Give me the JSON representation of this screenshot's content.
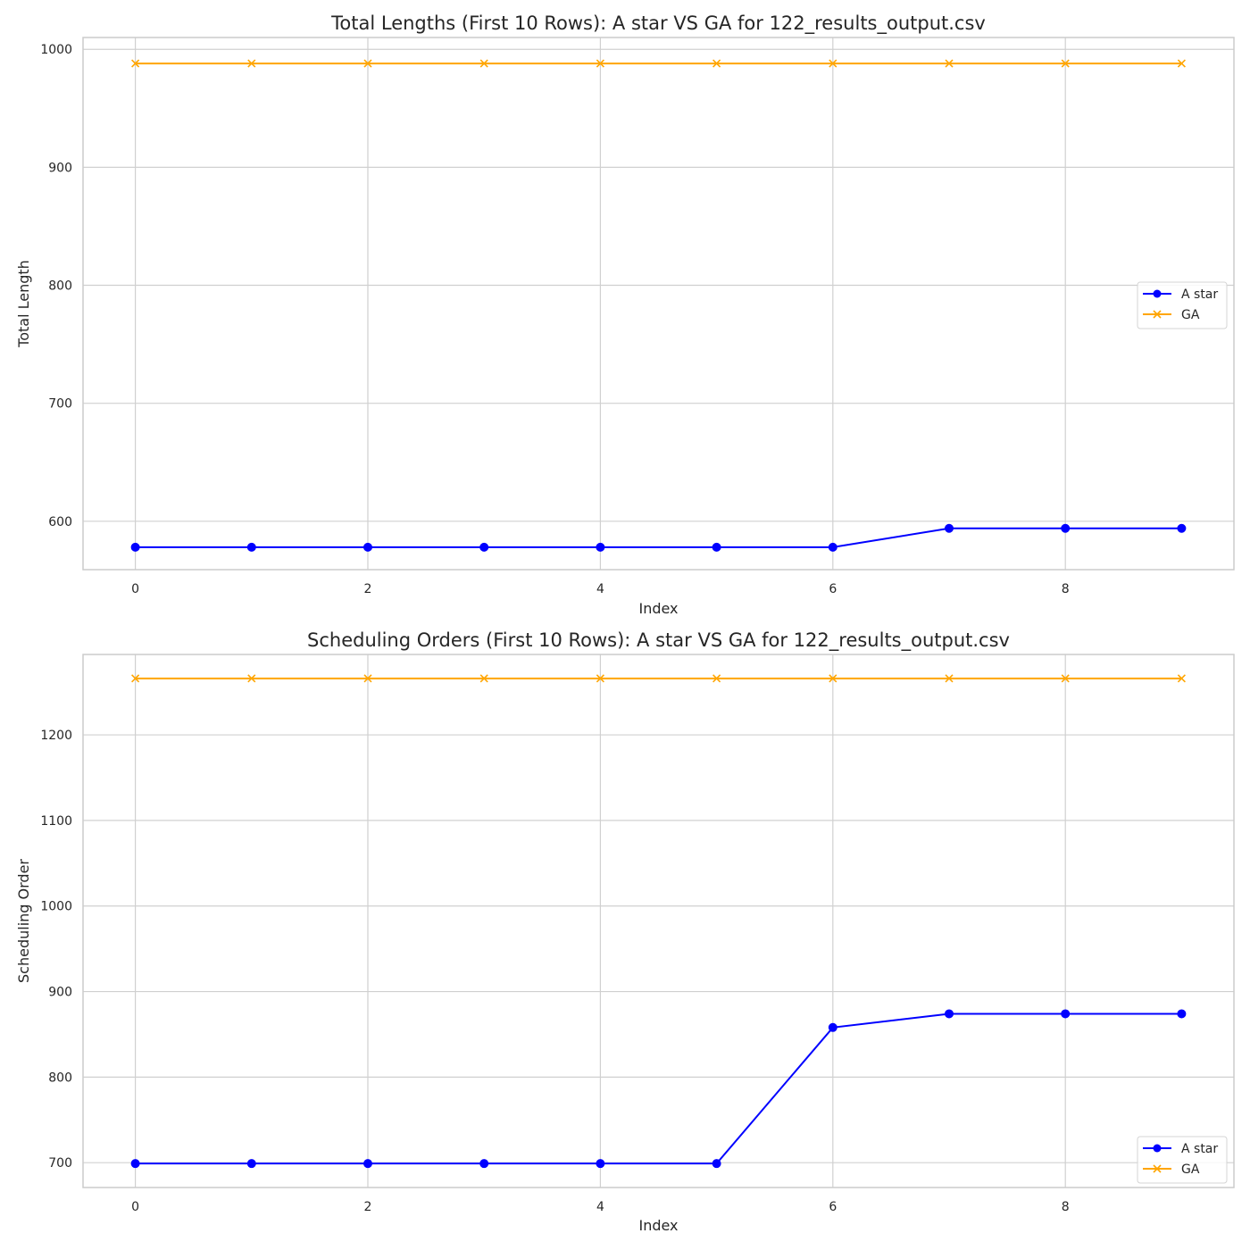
{
  "chart_data": [
    {
      "type": "line",
      "title": "Total Lengths (First 10 Rows): A star VS GA for 122_results_output.csv",
      "xlabel": "Index",
      "ylabel": "Total Length",
      "x": [
        0,
        1,
        2,
        3,
        4,
        5,
        6,
        7,
        8,
        9
      ],
      "xlim": [
        -0.45,
        9.45
      ],
      "ylim": [
        559,
        1010
      ],
      "xticks": [
        0,
        2,
        4,
        6,
        8
      ],
      "yticks": [
        600,
        700,
        800,
        900,
        1000
      ],
      "grid": true,
      "legend_position": "center-right",
      "series": [
        {
          "name": "A star",
          "color": "#0000ff",
          "marker": "circle",
          "values": [
            578,
            578,
            578,
            578,
            578,
            578,
            578,
            594,
            594,
            594
          ]
        },
        {
          "name": "GA",
          "color": "#ffa500",
          "marker": "x",
          "values": [
            988,
            988,
            988,
            988,
            988,
            988,
            988,
            988,
            988,
            988
          ]
        }
      ]
    },
    {
      "type": "line",
      "title": "Scheduling Orders (First 10 Rows): A star VS GA for 122_results_output.csv",
      "xlabel": "Index",
      "ylabel": "Scheduling Order",
      "x": [
        0,
        1,
        2,
        3,
        4,
        5,
        6,
        7,
        8,
        9
      ],
      "xlim": [
        -0.45,
        9.45
      ],
      "ylim": [
        671,
        1294
      ],
      "xticks": [
        0,
        2,
        4,
        6,
        8
      ],
      "yticks": [
        700,
        800,
        900,
        1000,
        1100,
        1200
      ],
      "grid": true,
      "legend_position": "lower-right",
      "series": [
        {
          "name": "A star",
          "color": "#0000ff",
          "marker": "circle",
          "values": [
            699,
            699,
            699,
            699,
            699,
            699,
            858,
            874,
            874,
            874
          ]
        },
        {
          "name": "GA",
          "color": "#ffa500",
          "marker": "x",
          "values": [
            1266,
            1266,
            1266,
            1266,
            1266,
            1266,
            1266,
            1266,
            1266,
            1266
          ]
        }
      ]
    }
  ]
}
